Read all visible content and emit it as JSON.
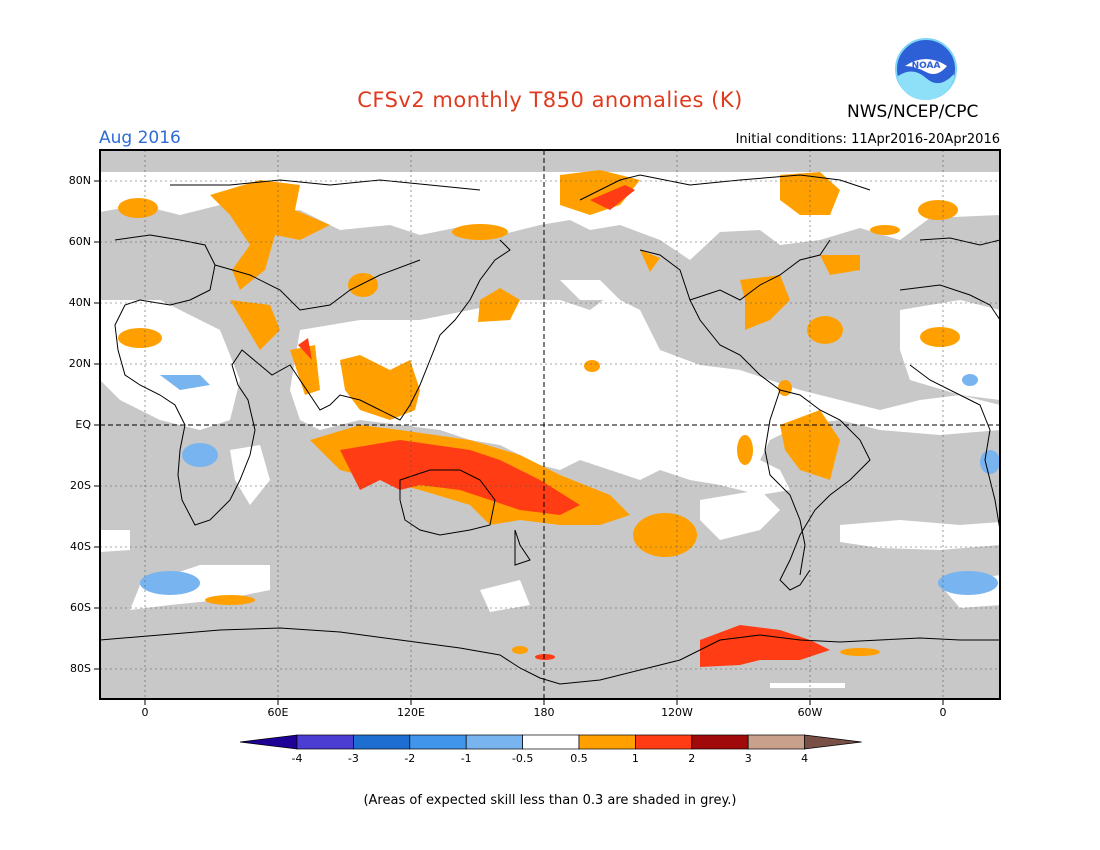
{
  "header": {
    "title": "CFSv2 monthly T850 anomalies (K)",
    "period": "Aug 2016",
    "initial_conditions": "Initial conditions: 11Apr2016-20Apr2016",
    "agency": "NWS/NCEP/CPC",
    "logo_text": "NOAA"
  },
  "map": {
    "lat_labels": [
      "80N",
      "60N",
      "40N",
      "20N",
      "EQ",
      "20S",
      "40S",
      "60S",
      "80S"
    ],
    "lon_labels": [
      "0",
      "60E",
      "120E",
      "180",
      "120W",
      "60W",
      "0"
    ],
    "colors": {
      "skill_grey": "#c8c8c8",
      "lt_05": "#ffffff",
      "p05_1": "#ffa000",
      "p1_2": "#ff3c14",
      "m05_1": "#78b4f0",
      "m1_2": "#4a96ea"
    }
  },
  "colorbar": {
    "labels": [
      "-4",
      "-3",
      "-2",
      "-1",
      "-0.5",
      "0.5",
      "1",
      "2",
      "3",
      "4"
    ],
    "colors": [
      "#1e0096",
      "#4b3cd2",
      "#1e6ed2",
      "#4196eb",
      "#78b4f0",
      "#ffffff",
      "#ffa000",
      "#ff3c14",
      "#a00a0a",
      "#c8a08c",
      "#785046"
    ]
  },
  "footnote": "(Areas of expected skill less than 0.3 are shaded in grey.)"
}
